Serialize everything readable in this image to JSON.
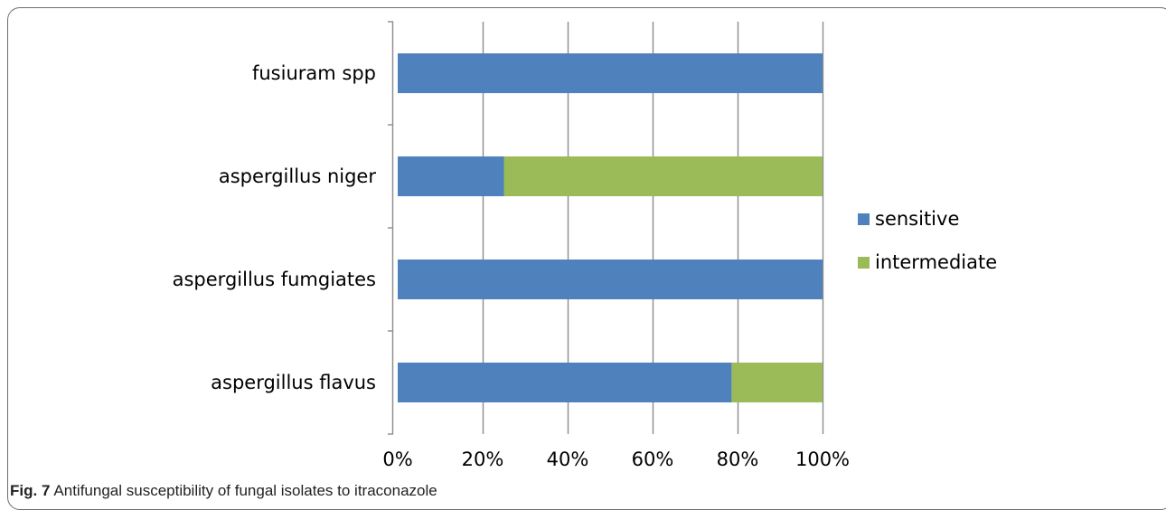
{
  "caption": {
    "figure_number": "Fig. 7",
    "text": "Antifungal susceptibility of fungal isolates to itraconazole"
  },
  "chart_data": {
    "type": "bar",
    "orientation": "horizontal",
    "stacked": "percent",
    "categories": [
      "aspergillus flavus",
      "aspergillus fumgiates",
      "aspergillus niger",
      "fusiuram spp"
    ],
    "series": [
      {
        "name": "sensitive",
        "color": "#4f81bd",
        "values": [
          78.6,
          100,
          25,
          100
        ]
      },
      {
        "name": "intermediate",
        "color": "#9bbb59",
        "values": [
          21.4,
          0,
          75,
          0
        ]
      }
    ],
    "xlim": [
      0,
      100
    ],
    "xticks": [
      "0%",
      "20%",
      "40%",
      "60%",
      "80%",
      "100%"
    ],
    "grid": "vertical",
    "legend": "right"
  }
}
